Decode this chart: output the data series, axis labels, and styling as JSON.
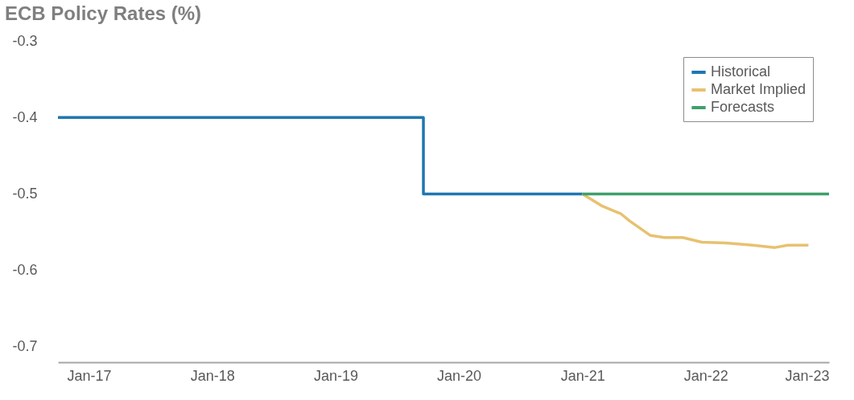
{
  "chart_data": {
    "type": "line",
    "title": "ECB Policy Rates (%)",
    "xlim": [
      "2016-10-01",
      "2023-01-01"
    ],
    "xticks": [
      {
        "value": "2017-01-01",
        "label": "Jan-17"
      },
      {
        "value": "2018-01-01",
        "label": "Jan-18"
      },
      {
        "value": "2019-01-01",
        "label": "Jan-19"
      },
      {
        "value": "2020-01-01",
        "label": "Jan-20"
      },
      {
        "value": "2021-01-01",
        "label": "Jan-21"
      },
      {
        "value": "2022-01-01",
        "label": "Jan-22"
      },
      {
        "value": "2023-01-01",
        "label": "Jan-23"
      }
    ],
    "ylim": [
      -0.72,
      -0.3
    ],
    "yticks": [
      -0.7,
      -0.6,
      -0.5,
      -0.4,
      -0.3
    ],
    "grid": false,
    "legend": "top right",
    "series": [
      {
        "name": "Historical",
        "type": "step",
        "color": "#1f77b0",
        "x": [
          "2016-10-01",
          "2019-09-18",
          "2021-01-01"
        ],
        "values": [
          -0.4,
          -0.5,
          -0.5
        ]
      },
      {
        "name": "Market Implied",
        "type": "line",
        "color": "#e8c170",
        "x": [
          "2021-01-01",
          "2021-03-01",
          "2021-04-25",
          "2021-05-20",
          "2021-07-20",
          "2021-09-01",
          "2021-10-25",
          "2021-12-20",
          "2022-03-01",
          "2022-05-20",
          "2022-07-25",
          "2022-09-01",
          "2022-11-01"
        ],
        "values": [
          -0.5,
          -0.516,
          -0.526,
          -0.535,
          -0.554,
          -0.557,
          -0.557,
          -0.563,
          -0.564,
          -0.567,
          -0.57,
          -0.567,
          -0.567
        ]
      },
      {
        "name": "Forecasts",
        "type": "line",
        "color": "#3fa06a",
        "x": [
          "2021-01-01",
          "2023-01-01"
        ],
        "values": [
          -0.5,
          -0.5
        ]
      }
    ]
  }
}
